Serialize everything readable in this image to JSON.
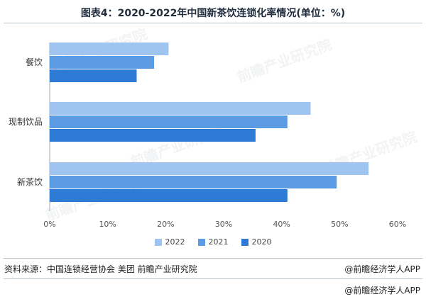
{
  "title": "图表4：2020-2022年中国新茶饮连锁化率情况(单位：%)",
  "source": "资料来源：中国连锁经营协会 美团 前瞻产业研究院",
  "brand": "@前瞻经济学人APP",
  "brand_bottom": "@前瞻经济学人APP",
  "watermark": "前瞻产业研究院",
  "colors": {
    "2022": "#9fc4ef",
    "2021": "#5b9be3",
    "2020": "#2e7bd6"
  },
  "chart_data": {
    "type": "bar",
    "orientation": "horizontal",
    "categories": [
      "餐饮",
      "现制饮品",
      "新茶饮"
    ],
    "series": [
      {
        "name": "2022",
        "values": [
          20.5,
          45.0,
          55.0
        ]
      },
      {
        "name": "2021",
        "values": [
          18.0,
          41.0,
          49.5
        ]
      },
      {
        "name": "2020",
        "values": [
          15.0,
          35.5,
          41.0
        ]
      }
    ],
    "xlim": [
      0,
      60
    ],
    "ticks": [
      "0%",
      "10%",
      "20%",
      "30%",
      "40%",
      "50%",
      "60%"
    ],
    "tick_values": [
      0,
      10,
      20,
      30,
      40,
      50,
      60
    ],
    "legend": [
      "2022",
      "2021",
      "2020"
    ],
    "legend_position": "bottom",
    "grid": false
  }
}
